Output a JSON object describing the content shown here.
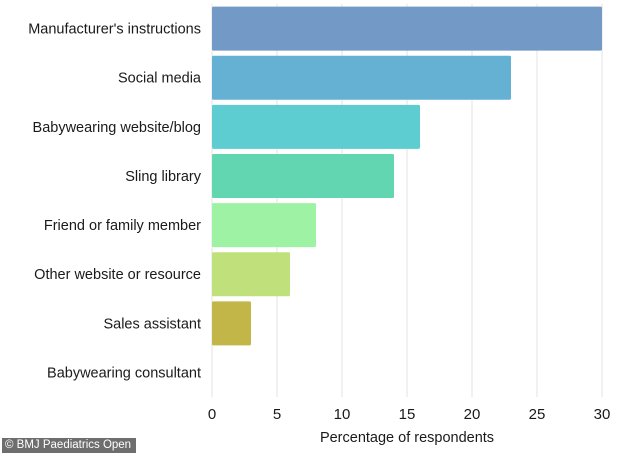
{
  "credit": "© BMJ Paediatrics Open",
  "chart_data": {
    "type": "bar",
    "orientation": "horizontal",
    "title": "",
    "xlabel": "Percentage of respondents",
    "ylabel": "",
    "categories": [
      "Manufacturer's instructions",
      "Social media",
      "Babywearing website/blog",
      "Sling library",
      "Friend or family member",
      "Other website or resource",
      "Sales assistant",
      "Babywearing consultant"
    ],
    "values": [
      30,
      23,
      16,
      14,
      8,
      6,
      3,
      0
    ],
    "colors": [
      "#7399c6",
      "#65b1d4",
      "#5ecdd1",
      "#62d6b0",
      "#9df2a4",
      "#bfe07b",
      "#c2b648",
      "#c2b648"
    ],
    "xlim": [
      0,
      30
    ],
    "xticks": [
      0,
      5,
      10,
      15,
      20,
      25,
      30
    ],
    "grid": true,
    "legend": "none"
  }
}
